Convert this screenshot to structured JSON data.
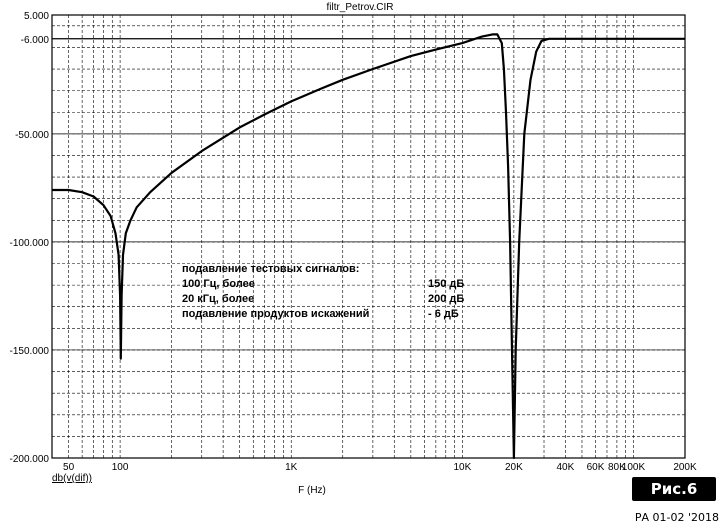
{
  "chart_data": {
    "type": "line",
    "title": "filtr_Petrov.CIR",
    "xlabel": "F (Hz)",
    "ylabel": "db(v(dif))",
    "x_scale": "log",
    "xlim": [
      40,
      200000
    ],
    "ylim": [
      -200,
      5
    ],
    "grid": true,
    "y_ticks": [
      {
        "value": 5,
        "label": "5.000"
      },
      {
        "value": -6,
        "label": "-6.000"
      },
      {
        "value": -50,
        "label": "-50.000"
      },
      {
        "value": -100,
        "label": "-100.000"
      },
      {
        "value": -150,
        "label": "-150.000"
      },
      {
        "value": -200,
        "label": "-200.000"
      }
    ],
    "x_ticks": [
      {
        "value": 50,
        "label": "50"
      },
      {
        "value": 100,
        "label": "100"
      },
      {
        "value": 1000,
        "label": "1K"
      },
      {
        "value": 10000,
        "label": "10K"
      },
      {
        "value": 20000,
        "label": "20K"
      },
      {
        "value": 40000,
        "label": "40K"
      },
      {
        "value": 60000,
        "label": "60K"
      },
      {
        "value": 80000,
        "label": "80K"
      },
      {
        "value": 100000,
        "label": "100K"
      },
      {
        "value": 200000,
        "label": "200K"
      }
    ],
    "reference_line": {
      "y": -6
    },
    "series": [
      {
        "points": [
          [
            40,
            -76
          ],
          [
            50,
            -76
          ],
          [
            60,
            -77
          ],
          [
            70,
            -79
          ],
          [
            80,
            -83
          ],
          [
            88,
            -88
          ],
          [
            94,
            -96
          ],
          [
            98,
            -106
          ],
          [
            100,
            -125
          ],
          [
            101,
            -154
          ],
          [
            102,
            -125
          ],
          [
            104,
            -106
          ],
          [
            108,
            -96
          ],
          [
            115,
            -90
          ],
          [
            125,
            -84
          ],
          [
            150,
            -77
          ],
          [
            200,
            -68
          ],
          [
            300,
            -58
          ],
          [
            500,
            -47
          ],
          [
            700,
            -41
          ],
          [
            1000,
            -35
          ],
          [
            1500,
            -29
          ],
          [
            2000,
            -25
          ],
          [
            3000,
            -20
          ],
          [
            5000,
            -14
          ],
          [
            7000,
            -11
          ],
          [
            10000,
            -8
          ],
          [
            13000,
            -5
          ],
          [
            15000,
            -4
          ],
          [
            16000,
            -4
          ],
          [
            17000,
            -8
          ],
          [
            17500,
            -20
          ],
          [
            18000,
            -40
          ],
          [
            18500,
            -65
          ],
          [
            19000,
            -100
          ],
          [
            19500,
            -150
          ],
          [
            20000,
            -200
          ],
          [
            20500,
            -150
          ],
          [
            21500,
            -100
          ],
          [
            23000,
            -50
          ],
          [
            25000,
            -25
          ],
          [
            27000,
            -12
          ],
          [
            29000,
            -7
          ],
          [
            32000,
            -6
          ],
          [
            60000,
            -6
          ],
          [
            200000,
            -6
          ]
        ]
      }
    ],
    "annotations": [
      {
        "label": "подавление тестовых сигналов:",
        "value": ""
      },
      {
        "label": "100 Гц, более",
        "value": "150 дБ"
      },
      {
        "label": "20 кГц, более",
        "value": "200 дБ"
      },
      {
        "label": "подавление продуктов искажений",
        "value": "- 6 дБ"
      }
    ]
  },
  "figure_label": "Рис.6",
  "footer": "РА 01-02 '2018"
}
